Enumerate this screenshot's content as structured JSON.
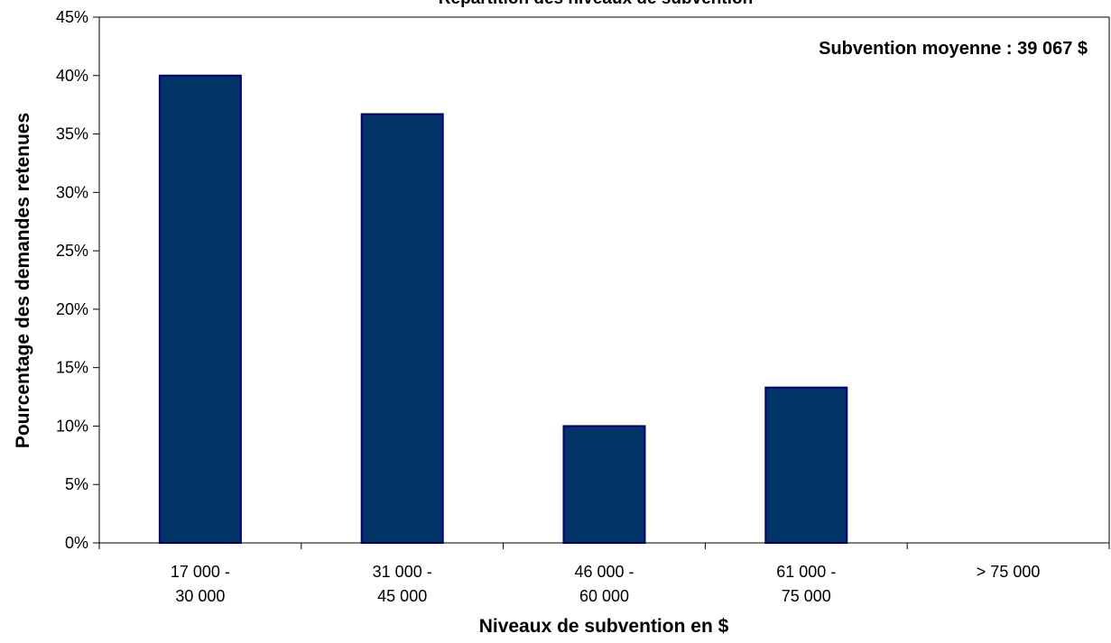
{
  "chart_data": {
    "type": "bar",
    "title": "Répartition des niveaux de subvention",
    "xlabel": "Niveaux de subvention en $",
    "ylabel": "Pourcentage des demandes retenues",
    "categories": [
      [
        "17 000 -",
        "30 000"
      ],
      [
        "31 000 -",
        "45 000"
      ],
      [
        "46 000 -",
        "60 000"
      ],
      [
        "61 000 -",
        "75 000"
      ],
      [
        "> 75 000"
      ]
    ],
    "values": [
      40.0,
      36.7,
      10.0,
      13.3,
      0
    ],
    "ylim": [
      0,
      45
    ],
    "yticks": [
      0,
      5,
      10,
      15,
      20,
      25,
      30,
      35,
      40,
      45
    ],
    "ytick_labels": [
      "0%",
      "5%",
      "10%",
      "15%",
      "20%",
      "25%",
      "30%",
      "35%",
      "40%",
      "45%"
    ],
    "annotation": "Subvention moyenne : 39 067 $",
    "grid": false,
    "legend": "none",
    "colors": {
      "bar_fill": "#003366",
      "bar_stroke": "#000080",
      "axis": "#000000"
    }
  }
}
